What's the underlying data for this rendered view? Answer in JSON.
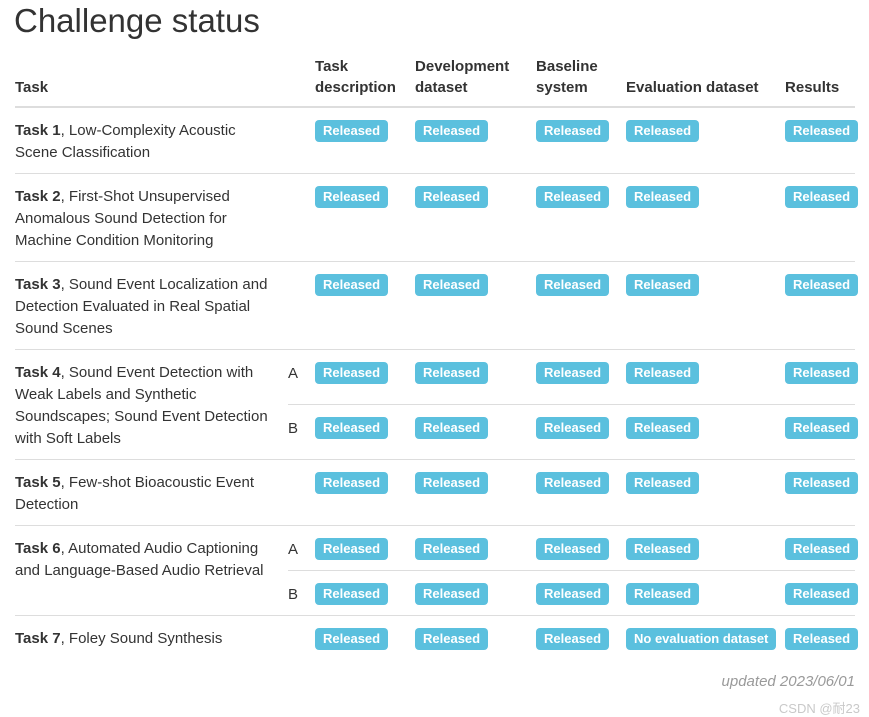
{
  "title": "Challenge status",
  "status_color": "#5bc0de",
  "table": {
    "columns": [
      "Task",
      "Task description",
      "Development dataset",
      "Baseline system",
      "Evaluation dataset",
      "Results"
    ],
    "rows": [
      {
        "task_bold": "Task 1",
        "task_rest": ", Low-Complexity Acoustic Scene Classification",
        "subrows": [
          {
            "sub": "",
            "statuses": [
              "Released",
              "Released",
              "Released",
              "Released",
              "Released"
            ]
          }
        ]
      },
      {
        "task_bold": "Task 2",
        "task_rest": ", First-Shot Unsupervised Anomalous Sound Detection for Machine Condition Monitoring",
        "subrows": [
          {
            "sub": "",
            "statuses": [
              "Released",
              "Released",
              "Released",
              "Released",
              "Released"
            ]
          }
        ]
      },
      {
        "task_bold": "Task 3",
        "task_rest": ", Sound Event Localization and Detection Evaluated in Real Spatial Sound Scenes",
        "subrows": [
          {
            "sub": "",
            "statuses": [
              "Released",
              "Released",
              "Released",
              "Released",
              "Released"
            ]
          }
        ]
      },
      {
        "task_bold": "Task 4",
        "task_rest": ", Sound Event Detection with Weak Labels and Synthetic Soundscapes; Sound Event Detection with Soft Labels",
        "subrows": [
          {
            "sub": "A",
            "statuses": [
              "Released",
              "Released",
              "Released",
              "Released",
              "Released"
            ]
          },
          {
            "sub": "B",
            "statuses": [
              "Released",
              "Released",
              "Released",
              "Released",
              "Released"
            ]
          }
        ]
      },
      {
        "task_bold": "Task 5",
        "task_rest": ", Few-shot Bioacoustic Event Detection",
        "subrows": [
          {
            "sub": "",
            "statuses": [
              "Released",
              "Released",
              "Released",
              "Released",
              "Released"
            ]
          }
        ]
      },
      {
        "task_bold": "Task 6",
        "task_rest": ", Automated Audio Captioning and Language-Based Audio Retrieval",
        "subrows": [
          {
            "sub": "A",
            "statuses": [
              "Released",
              "Released",
              "Released",
              "Released",
              "Released"
            ]
          },
          {
            "sub": "B",
            "statuses": [
              "Released",
              "Released",
              "Released",
              "Released",
              "Released"
            ]
          }
        ]
      },
      {
        "task_bold": "Task 7",
        "task_rest": ", Foley Sound Synthesis",
        "subrows": [
          {
            "sub": "",
            "statuses": [
              "Released",
              "Released",
              "Released",
              "No evaluation dataset",
              "Released"
            ]
          }
        ]
      }
    ]
  },
  "footer": {
    "updated": "updated 2023/06/01",
    "watermark": "CSDN @耐23"
  }
}
